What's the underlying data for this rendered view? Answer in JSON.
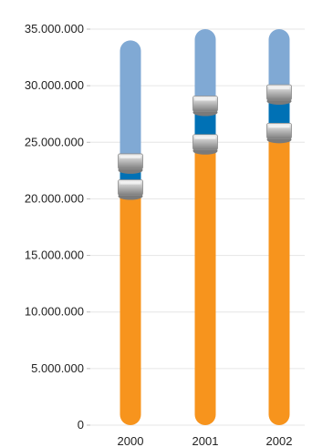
{
  "chart_data": {
    "type": "bar",
    "stacked": true,
    "categories": [
      "2000",
      "2001",
      "2002"
    ],
    "series": [
      {
        "color": "#f7941d",
        "values": [
          21000000,
          25000000,
          26000000
        ]
      },
      {
        "color": "#0071b5",
        "values": [
          2300000,
          3400000,
          3400000
        ]
      },
      {
        "color": "#80a9d4",
        "values": [
          10700000,
          6600000,
          5600000
        ]
      }
    ],
    "ylim": [
      0,
      35000000
    ],
    "yticks": [
      0,
      5000000,
      10000000,
      15000000,
      20000000,
      25000000,
      30000000,
      35000000
    ],
    "ytick_labels": [
      "0",
      "5.000.000",
      "10.000.000",
      "15.000.000",
      "20.000.000",
      "25.000.000",
      "30.000.000",
      "35.000.000"
    ],
    "grid": true,
    "legend": "none",
    "title": "",
    "xlabel": "",
    "ylabel": ""
  }
}
